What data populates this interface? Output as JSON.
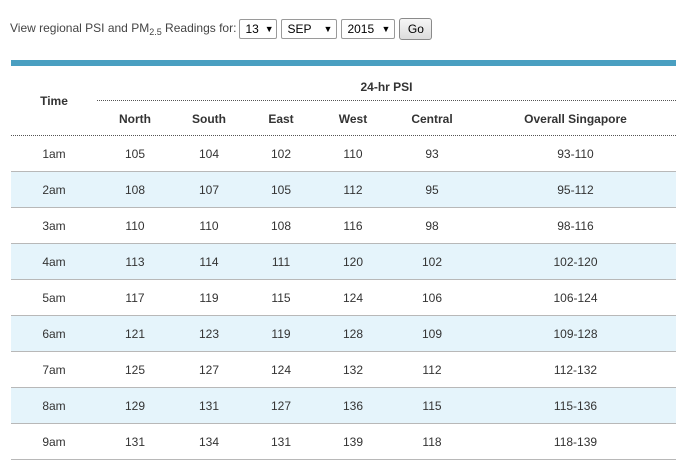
{
  "filter": {
    "label_prefix": "View regional PSI and PM",
    "label_sub": "2.5",
    "label_suffix": " Readings for:",
    "day": "13",
    "month": "SEP",
    "year": "2015",
    "go_label": "Go"
  },
  "table": {
    "time_header": "Time",
    "group_header": "24-hr PSI",
    "columns": [
      "North",
      "South",
      "East",
      "West",
      "Central",
      "Overall Singapore"
    ],
    "rows": [
      {
        "time": "1am",
        "values": [
          "105",
          "104",
          "102",
          "110",
          "93",
          "93-110"
        ]
      },
      {
        "time": "2am",
        "values": [
          "108",
          "107",
          "105",
          "112",
          "95",
          "95-112"
        ]
      },
      {
        "time": "3am",
        "values": [
          "110",
          "110",
          "108",
          "116",
          "98",
          "98-116"
        ]
      },
      {
        "time": "4am",
        "values": [
          "113",
          "114",
          "111",
          "120",
          "102",
          "102-120"
        ]
      },
      {
        "time": "5am",
        "values": [
          "117",
          "119",
          "115",
          "124",
          "106",
          "106-124"
        ]
      },
      {
        "time": "6am",
        "values": [
          "121",
          "123",
          "119",
          "128",
          "109",
          "109-128"
        ]
      },
      {
        "time": "7am",
        "values": [
          "125",
          "127",
          "124",
          "132",
          "112",
          "112-132"
        ]
      },
      {
        "time": "8am",
        "values": [
          "129",
          "131",
          "127",
          "136",
          "115",
          "115-136"
        ]
      },
      {
        "time": "9am",
        "values": [
          "131",
          "134",
          "131",
          "139",
          "118",
          "118-139"
        ]
      }
    ]
  }
}
